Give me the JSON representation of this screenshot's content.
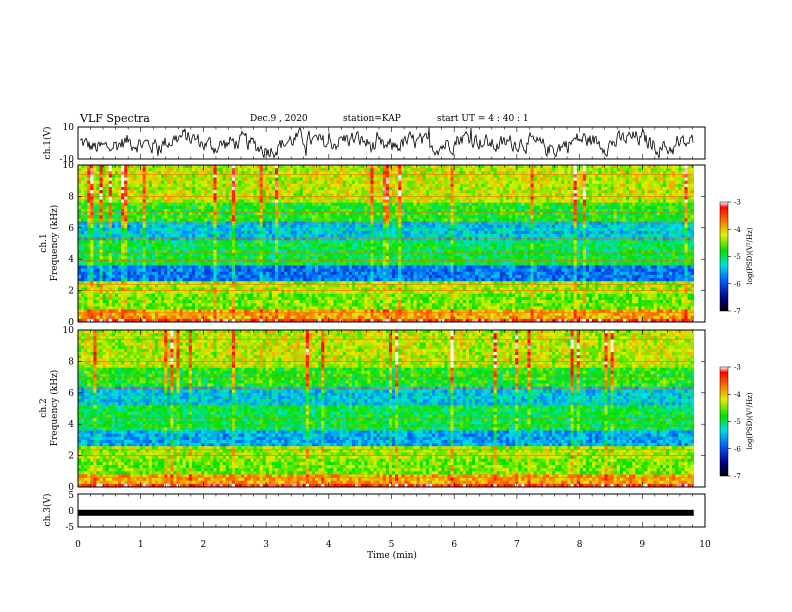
{
  "header": {
    "title": "VLF Spectra",
    "date": "Dec.9 , 2020",
    "station": "station=KAP",
    "start": "start UT = 4 : 40 : 1"
  },
  "chart_data": [
    {
      "type": "line",
      "ylabel": "ch.1(V)",
      "ylim": [
        -10,
        10
      ],
      "yticks": [
        "10",
        "-10"
      ],
      "xlim": [
        0,
        10
      ]
    },
    {
      "type": "heatmap",
      "ylabel": "ch.1\nFrequency (kHz)",
      "ylim": [
        0,
        10
      ],
      "yticks": [
        "0",
        "2",
        "4",
        "6",
        "8",
        "10"
      ],
      "xlim": [
        0,
        10
      ],
      "data_end_min": 9.82,
      "colorbar": {
        "label": "log(PSD)(V²/Hz)",
        "range": [
          -7,
          -3
        ],
        "ticks": [
          "-3",
          "-4",
          "-5",
          "-6",
          "-7"
        ]
      }
    },
    {
      "type": "heatmap",
      "ylabel": "ch.2\nFrequency (kHz)",
      "ylim": [
        0,
        10
      ],
      "yticks": [
        "0",
        "2",
        "4",
        "6",
        "8",
        "10"
      ],
      "xlim": [
        0,
        10
      ],
      "data_end_min": 9.82,
      "colorbar": {
        "label": "log(PSD)(V²/Hz)",
        "range": [
          -7,
          -3
        ],
        "ticks": [
          "-3",
          "-4",
          "-5",
          "-6",
          "-7"
        ]
      }
    },
    {
      "type": "line",
      "ylabel": "ch.3(V)",
      "ylim": [
        -5,
        5
      ],
      "yticks": [
        "5",
        "0",
        "-5"
      ],
      "xlim": [
        0,
        10
      ],
      "xlabel": "Time (min)",
      "xticks": [
        "0",
        "1",
        "2",
        "3",
        "4",
        "5",
        "6",
        "7",
        "8",
        "9",
        "10"
      ],
      "level": -0.7
    }
  ],
  "colors": {
    "low": "#000080",
    "mid": "#00d000",
    "high": "#ff0000"
  }
}
